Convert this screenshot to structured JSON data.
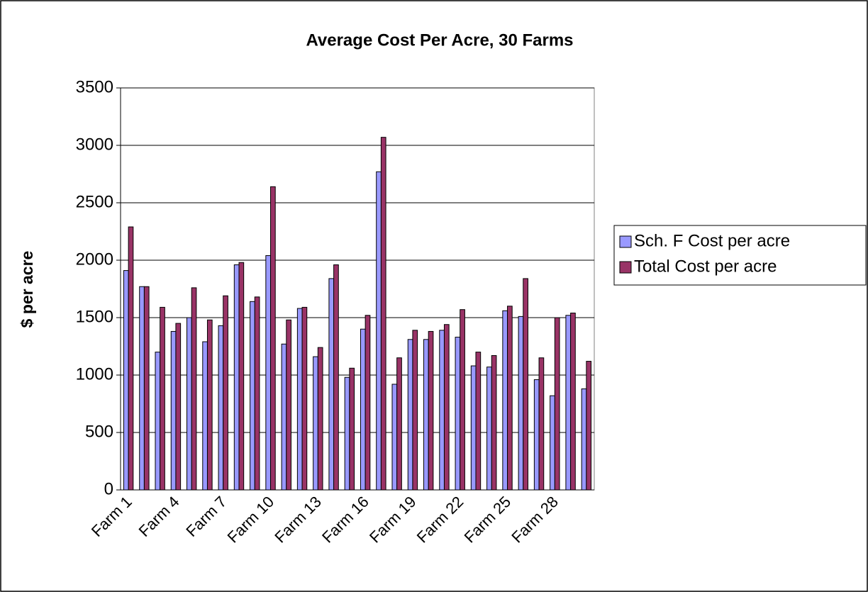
{
  "chart_data": {
    "type": "bar",
    "title": "Average Cost Per Acre, 30 Farms",
    "y_label": "$ per acre",
    "categories": [
      "Farm 1",
      null,
      null,
      "Farm 4",
      null,
      null,
      "Farm 7",
      null,
      null,
      "Farm 10",
      null,
      null,
      "Farm 13",
      null,
      null,
      "Farm 16",
      null,
      null,
      "Farm 19",
      null,
      null,
      "Farm 22",
      null,
      null,
      "Farm 25",
      null,
      null,
      "Farm 28",
      null,
      null
    ],
    "series": [
      {
        "name": "Sch. F Cost per acre",
        "color": "#9999ff",
        "values": [
          1910,
          1770,
          1200,
          1380,
          1500,
          1290,
          1430,
          1960,
          1640,
          2040,
          1270,
          1580,
          1160,
          1840,
          980,
          1400,
          2770,
          920,
          1310,
          1310,
          1390,
          1330,
          1080,
          1070,
          1560,
          1510,
          960,
          820,
          1520,
          880
        ]
      },
      {
        "name": "Total Cost per acre",
        "color": "#993366",
        "values": [
          2290,
          1770,
          1590,
          1450,
          1760,
          1480,
          1690,
          1980,
          1680,
          2640,
          1480,
          1590,
          1240,
          1960,
          1060,
          1520,
          3070,
          1150,
          1390,
          1380,
          1440,
          1570,
          1200,
          1170,
          1600,
          1840,
          1150,
          1500,
          1540,
          1120
        ]
      }
    ],
    "ylim": [
      0,
      3500
    ],
    "yticks": [
      0,
      500,
      1000,
      1500,
      2000,
      2500,
      3000,
      3500
    ],
    "grid": true,
    "legend": "right"
  }
}
